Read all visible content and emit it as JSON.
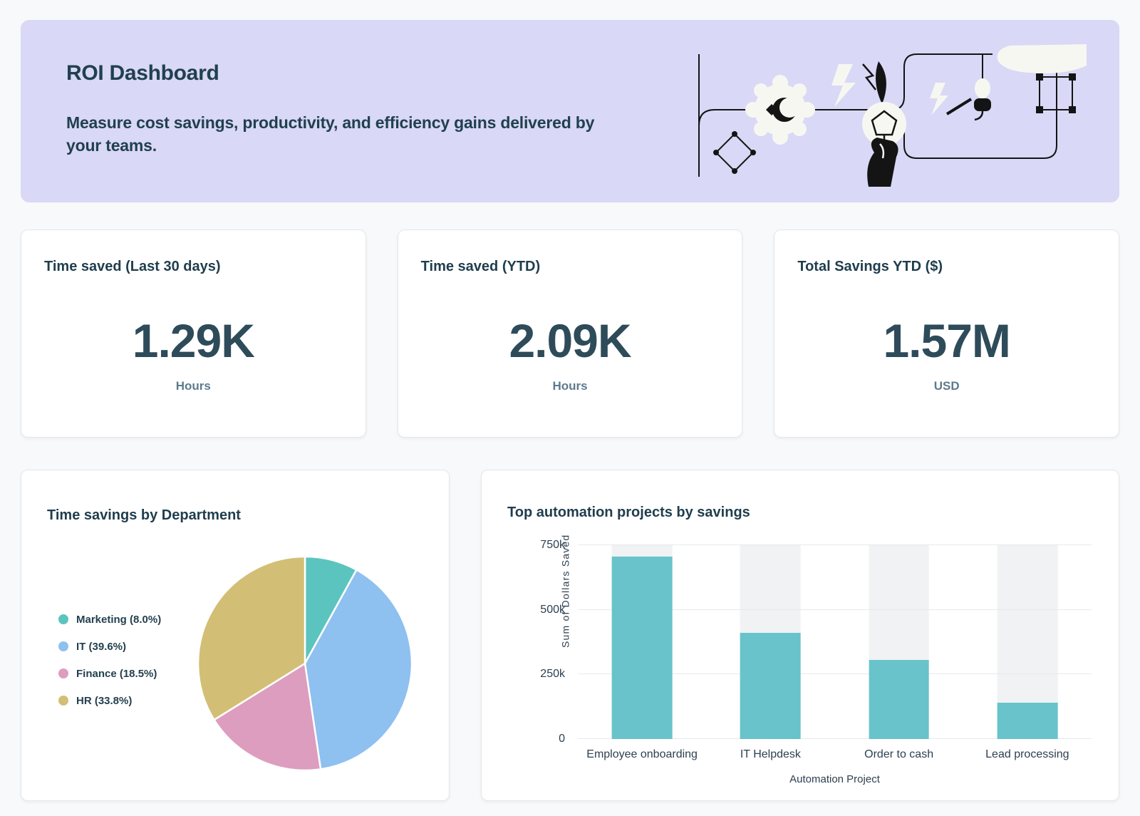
{
  "header": {
    "title": "ROI Dashboard",
    "subtitle": "Measure cost savings, productivity, and efficiency gains delivered by your teams."
  },
  "kpis": [
    {
      "title": "Time saved (Last 30 days)",
      "value": "1.29K",
      "unit": "Hours"
    },
    {
      "title": "Time saved (YTD)",
      "value": "2.09K",
      "unit": "Hours"
    },
    {
      "title": "Total Savings YTD ($)",
      "value": "1.57M",
      "unit": "USD"
    }
  ],
  "colors": {
    "banner_bg": "#d9d8f6",
    "page_bg": "#f7f9fa",
    "text_dark": "#1f3d4d",
    "text_muted": "#5d7b8c"
  },
  "chart_data": [
    {
      "type": "pie",
      "title": "Time savings by Department",
      "labels": [
        "Marketing",
        "IT",
        "Finance",
        "HR"
      ],
      "values": [
        8.0,
        39.6,
        18.5,
        33.8
      ],
      "legend_labels": [
        "Marketing (8.0%)",
        "IT (39.6%)",
        "Finance (18.5%)",
        "HR (33.8%)"
      ],
      "colors": [
        "#5bc4bf",
        "#8ec0f0",
        "#dd9dbe",
        "#d2bf75"
      ],
      "legend_position": "left",
      "start_angle_deg": 0,
      "direction": "clockwise",
      "slice_border_color": "#ffffff"
    },
    {
      "type": "bar",
      "title": "Top automation projects by savings",
      "categories": [
        "Employee onboarding",
        "IT Helpdesk",
        "Order to cash",
        "Lead processing"
      ],
      "values": [
        705000,
        410000,
        305000,
        140000
      ],
      "xlabel": "Automation Project",
      "ylabel": "Sum of Dollars Saved",
      "ylim": [
        0,
        750000
      ],
      "yticks": [
        0,
        250000,
        500000,
        750000
      ],
      "ytick_labels": [
        "0",
        "250k",
        "500k",
        "750k"
      ],
      "bar_color": "#68c3cb",
      "track_color": "#f1f2f3",
      "grid": true
    }
  ]
}
